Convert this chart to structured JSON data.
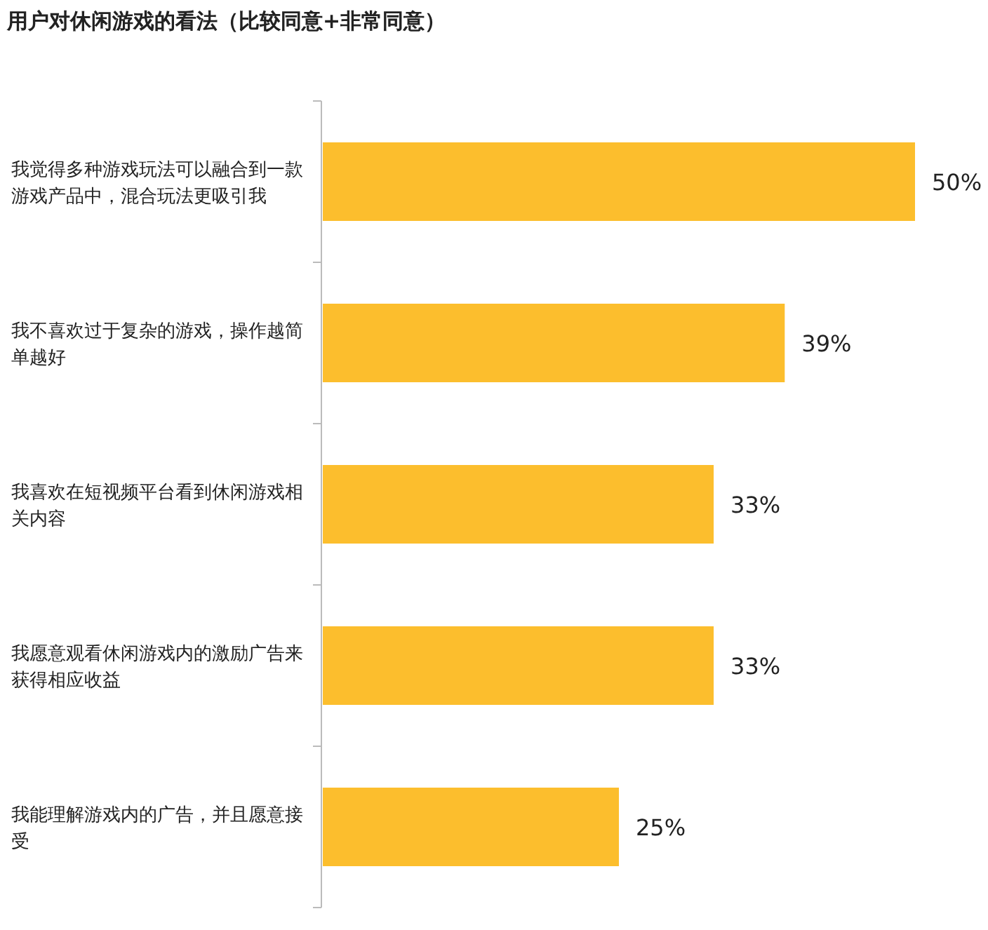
{
  "chart_data": {
    "type": "bar",
    "orientation": "horizontal",
    "title": "用户对休闲游戏的看法（比较同意+非常同意）",
    "categories": [
      "我觉得多种游戏玩法可以融合到一款游戏产品中，混合玩法更吸引我",
      "我不喜欢过于复杂的游戏，操作越简单越好",
      "我喜欢在短视频平台看到休闲游戏相关内容",
      "我愿意观看休闲游戏内的激励广告来获得相应收益",
      "我能理解游戏内的广告，并且愿意接受"
    ],
    "values": [
      50,
      39,
      33,
      33,
      25
    ],
    "value_labels": [
      "50%",
      "39%",
      "33%",
      "33%",
      "25%"
    ],
    "color": "#fcbe2d"
  }
}
